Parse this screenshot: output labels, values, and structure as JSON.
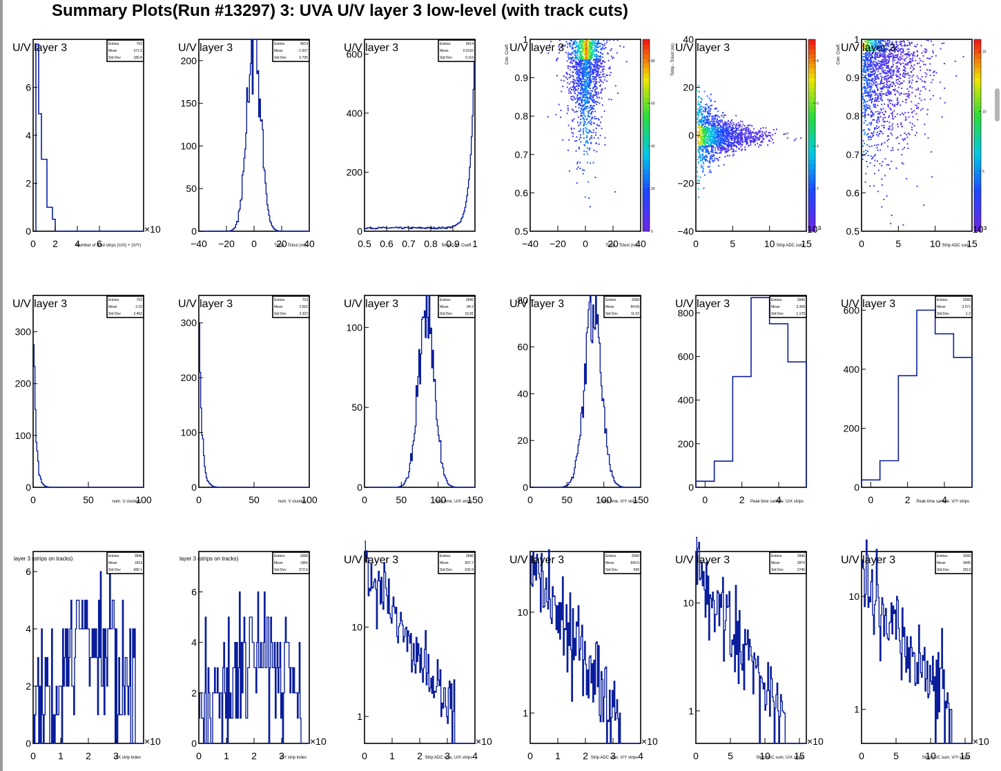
{
  "page_title": "Summary Plots(Run #13297) 3: UVA U/V layer 3 low-level (with track cuts)",
  "colors": {
    "hist_line": "#0a1e9c",
    "axis": "#000000",
    "frame": "#000000"
  },
  "stat_labels": [
    "Entries",
    "Mean",
    "Std Dev"
  ],
  "chart_data": [
    {
      "id": "p11",
      "type": "bar",
      "title": "U/V layer 3",
      "xlabel": "Number of fired strips (U/X) + (V/Y)",
      "xlim": [
        0,
        10
      ],
      "ylim": [
        0,
        8
      ],
      "xticks": [
        "0",
        "2",
        "4",
        "6"
      ],
      "yticks": [
        "0",
        "2",
        "4",
        "6"
      ],
      "x_exponent": "×10",
      "stats": [
        "703",
        "371.5",
        "180.8"
      ],
      "values": [
        0,
        7.8,
        4.9,
        3.0,
        3.0,
        1.0,
        1.0,
        0.5,
        0,
        0,
        0,
        0,
        0,
        0,
        0,
        0,
        0,
        0,
        0,
        0,
        0,
        0,
        0,
        0,
        0,
        0,
        0,
        0,
        0,
        0,
        0,
        0,
        0,
        0,
        0,
        0,
        0,
        0,
        0,
        0
      ]
    },
    {
      "id": "p12",
      "type": "line",
      "title": "U/V layer 3",
      "xlabel": "Tstrip - Tclust (ns)",
      "xlim": [
        -40,
        40
      ],
      "ylim": [
        0,
        225
      ],
      "xticks": [
        "−40",
        "−20",
        "0",
        "20",
        "40"
      ],
      "yticks": [
        "0",
        "50",
        "100",
        "150",
        "200"
      ],
      "stats": [
        "4914",
        "−1.507",
        "5.795"
      ],
      "shape": {
        "kind": "gauss",
        "mean": 0,
        "sigma": 5,
        "amp": 218
      }
    },
    {
      "id": "p13",
      "type": "line",
      "title": "U/V layer 3",
      "xlabel": "Strip Corr. Coeff.",
      "xlim": [
        0.5,
        1.0
      ],
      "ylim": [
        0,
        650
      ],
      "xticks": [
        "0.5",
        "0.6",
        "0.7",
        "0.8",
        "0.9",
        "1"
      ],
      "yticks": [
        "0",
        "200",
        "400",
        "600"
      ],
      "stats": [
        "4914",
        "0.9132",
        "0.119"
      ],
      "shape": {
        "kind": "exp_rise",
        "amp": 640,
        "scale": 0.02
      }
    },
    {
      "id": "p14",
      "type": "heatmap",
      "title": "U/V layer 3",
      "xlabel": "Tstrip - Tclust (ns)",
      "ylabel": "Corr. Coeff.",
      "xlim": [
        -40,
        40
      ],
      "ylim": [
        0.5,
        1.0
      ],
      "xticks": [
        "−40",
        "−20",
        "0",
        "20",
        "40"
      ],
      "yticks": [
        "0.5",
        "0.6",
        "0.7",
        "0.8",
        "0.9",
        "1"
      ],
      "zticks": [
        "0",
        "20",
        "40",
        "60",
        "80"
      ],
      "zlim": [
        0,
        90
      ]
    },
    {
      "id": "p15",
      "type": "heatmap",
      "title": "U/V layer 3",
      "xlabel": "Strip ADC sum",
      "ylabel": "Tstrip - Tclust (ns)",
      "xlim": [
        0,
        15
      ],
      "ylim": [
        -40,
        40
      ],
      "xticks": [
        "0",
        "5",
        "10",
        "15"
      ],
      "yticks": [
        "−40",
        "−20",
        "0",
        "20",
        "40"
      ],
      "zticks": [
        "2",
        "4",
        "6",
        "8"
      ],
      "zlim": [
        0,
        9
      ],
      "z_exponent": "10³"
    },
    {
      "id": "p16",
      "type": "heatmap",
      "title": "U/V layer 3",
      "xlabel": "Strip ADC sum",
      "ylabel": "Corr. Coeff.",
      "xlim": [
        0,
        15
      ],
      "ylim": [
        0.5,
        1.0
      ],
      "xticks": [
        "0",
        "5",
        "10",
        "15"
      ],
      "yticks": [
        "0.5",
        "0.6",
        "0.7",
        "0.8",
        "0.9",
        "1"
      ],
      "zticks": [
        "5",
        "10",
        "15"
      ],
      "zlim": [
        0,
        16
      ],
      "z_exponent": "10³"
    },
    {
      "id": "p21",
      "type": "line",
      "title": "U/V layer 3",
      "xlabel": "num. U clusters",
      "xlim": [
        0,
        100
      ],
      "ylim": [
        0,
        370
      ],
      "xticks": [
        "0",
        "50",
        "100"
      ],
      "yticks": [
        "0",
        "100",
        "200",
        "300"
      ],
      "stats": [
        "703",
        "2.22",
        "2.462"
      ],
      "shape": {
        "kind": "exp_fall",
        "amp": 360,
        "scale": 2.2
      }
    },
    {
      "id": "p22",
      "type": "line",
      "title": "U/V layer 3",
      "xlabel": "num. V clusters",
      "xlim": [
        0,
        100
      ],
      "ylim": [
        0,
        350
      ],
      "xticks": [
        "0",
        "50",
        "100"
      ],
      "yticks": [
        "0",
        "100",
        "200",
        "300"
      ],
      "stats": [
        "703",
        "2.562",
        "3.322"
      ],
      "shape": {
        "kind": "exp_fall",
        "amp": 340,
        "scale": 2.5
      }
    },
    {
      "id": "p23",
      "type": "line",
      "title": "U/V layer 3",
      "xlabel": "Strip time, U/X strips",
      "xlim": [
        0,
        150
      ],
      "ylim": [
        0,
        120
      ],
      "xticks": [
        "0",
        "50",
        "100",
        "150"
      ],
      "yticks": [
        "0",
        "50",
        "100"
      ],
      "stats": [
        "2846",
        "84.2",
        "10.81"
      ],
      "shape": {
        "kind": "gauss",
        "mean": 84,
        "sigma": 10.8,
        "amp": 110
      }
    },
    {
      "id": "p24",
      "type": "line",
      "title": "U/V layer 3",
      "xlabel": "Strip time, V/Y strips",
      "xlim": [
        0,
        150
      ],
      "ylim": [
        0,
        82
      ],
      "xticks": [
        "0",
        "50",
        "100",
        "150"
      ],
      "yticks": [
        "0",
        "20",
        "40",
        "60",
        "80"
      ],
      "stats": [
        "2068",
        "84.59",
        "11.62"
      ],
      "shape": {
        "kind": "gauss",
        "mean": 85,
        "sigma": 11.6,
        "amp": 76
      }
    },
    {
      "id": "p25",
      "type": "bar",
      "title": "U/V layer 3",
      "xlabel": "Peak time sample, U/X strips",
      "xlim": [
        -0.5,
        5.5
      ],
      "ylim": [
        0,
        880
      ],
      "xticks": [
        "0",
        "2",
        "4"
      ],
      "yticks": [
        "0",
        "200",
        "400",
        "600",
        "800"
      ],
      "stats": [
        "2846",
        "3.368",
        "1.178"
      ],
      "values": [
        28,
        120,
        508,
        870,
        750,
        575
      ]
    },
    {
      "id": "p26",
      "type": "bar",
      "title": "U/V layer 3",
      "xlabel": "Peak time sample, V/Y strips",
      "xlim": [
        -0.5,
        5.5
      ],
      "ylim": [
        0,
        650
      ],
      "xticks": [
        "0",
        "2",
        "4"
      ],
      "yticks": [
        "0",
        "200",
        "400",
        "600"
      ],
      "stats": [
        "2068",
        "3.371",
        "1.2"
      ],
      "values": [
        25,
        90,
        378,
        600,
        520,
        440
      ]
    },
    {
      "id": "p31",
      "type": "line",
      "title": "layer 3 (strips on tracks)",
      "xlabel": "U/X strip index",
      "xlim": [
        0,
        4
      ],
      "ylim": [
        0,
        6.7
      ],
      "xticks": [
        "0",
        "1",
        "2",
        "3"
      ],
      "yticks": [
        "0",
        "2",
        "4",
        "6"
      ],
      "x_exponent": "×10",
      "stats": [
        "2846",
        "1819",
        "680.1"
      ],
      "shape": {
        "kind": "noise",
        "lo": 0,
        "hi": 6
      }
    },
    {
      "id": "p32",
      "type": "line",
      "title": "layer 3 (strips on tracks)",
      "xlabel": "V/Y strip index",
      "xlim": [
        0,
        4
      ],
      "ylim": [
        0,
        7.6
      ],
      "xticks": [
        "0",
        "1",
        "2",
        "3"
      ],
      "yticks": [
        "0",
        "2",
        "4",
        "6"
      ],
      "x_exponent": "×10",
      "stats": [
        "2068",
        "1966",
        "672.6"
      ],
      "shape": {
        "kind": "noise",
        "lo": 0,
        "hi": 7
      }
    },
    {
      "id": "p33",
      "type": "line",
      "title": "U/V layer 3",
      "xlabel": "Strip ADC max, U/X strips",
      "xlim": [
        0,
        4
      ],
      "ylim": [
        0.5,
        70
      ],
      "log": true,
      "xticks": [
        "0",
        "1",
        "2",
        "3",
        "4"
      ],
      "yticks": [
        "1",
        "10"
      ],
      "x_exponent": "×10",
      "stats": [
        "2846",
        "697.7",
        "630.9"
      ],
      "shape": {
        "kind": "log_fall",
        "amp": 45,
        "scale": 0.9
      }
    },
    {
      "id": "p34",
      "type": "line",
      "title": "U/V layer 3",
      "xlabel": "Strip ADC max, V/Y strips",
      "xlim": [
        0,
        4
      ],
      "ylim": [
        0.5,
        40
      ],
      "log": true,
      "xticks": [
        "0",
        "1",
        "2",
        "3",
        "4"
      ],
      "yticks": [
        "1",
        "10"
      ],
      "x_exponent": "×10",
      "stats": [
        "2068",
        "843.6",
        "695"
      ],
      "shape": {
        "kind": "log_fall",
        "amp": 28,
        "scale": 0.95
      }
    },
    {
      "id": "p35",
      "type": "line",
      "title": "U/V layer 3",
      "xlabel": "Strip ADC sum, U/X strips",
      "xlim": [
        0,
        16
      ],
      "ylim": [
        0.5,
        30
      ],
      "log": true,
      "xticks": [
        "0",
        "5",
        "10",
        "15"
      ],
      "yticks": [
        "1",
        "10"
      ],
      "x_exponent": "×10",
      "stats": [
        "2846",
        "2870",
        "2746"
      ],
      "shape": {
        "kind": "log_fall",
        "amp": 22,
        "scale": 4.0
      }
    },
    {
      "id": "p36",
      "type": "line",
      "title": "U/V layer 3",
      "xlabel": "Strip ADC sum, V/Y strips",
      "xlim": [
        0,
        16
      ],
      "ylim": [
        0.5,
        25
      ],
      "log": true,
      "xticks": [
        "0",
        "5",
        "10",
        "15"
      ],
      "yticks": [
        "1",
        "10"
      ],
      "x_exponent": "×10",
      "stats": [
        "2068",
        "3445",
        "3013"
      ],
      "shape": {
        "kind": "log_fall",
        "amp": 18,
        "scale": 4.2
      }
    }
  ]
}
